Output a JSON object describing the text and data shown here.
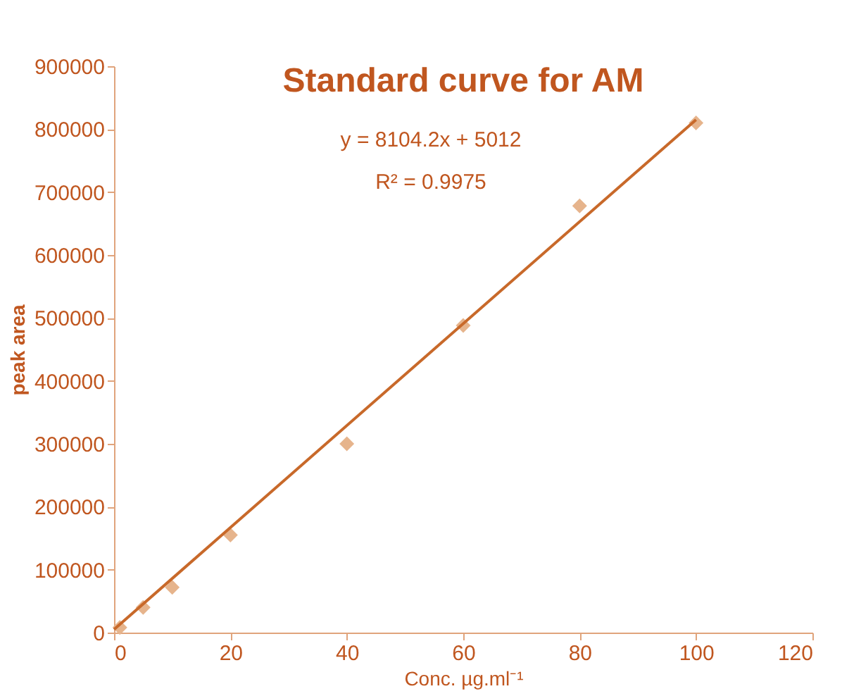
{
  "chart_data": {
    "type": "scatter",
    "title": "Standard curve for AM",
    "xlabel": "Conc. µg.ml⁻¹",
    "ylabel": "peak area",
    "xlim": [
      0,
      120
    ],
    "xticks": [
      0,
      20,
      40,
      60,
      80,
      100,
      120
    ],
    "ylim": [
      0,
      900000
    ],
    "yticks": [
      0,
      100000,
      200000,
      300000,
      400000,
      500000,
      600000,
      700000,
      800000,
      900000
    ],
    "grid": false,
    "marker": "diamond",
    "annotations": [
      "y = 8104.2x + 5012",
      "R² = 0.9975"
    ],
    "series": [
      {
        "color": "#e6b48c",
        "x": [
          1,
          5,
          10,
          20,
          40,
          60,
          80,
          100
        ],
        "values": [
          8000,
          40000,
          72000,
          155000,
          300000,
          488000,
          678000,
          810000
        ]
      },
      {
        "type": "line",
        "color": "#c8692a",
        "line_style": "solid",
        "marker": "none",
        "x": [
          0,
          100
        ],
        "values": [
          5000,
          815000
        ]
      }
    ]
  }
}
